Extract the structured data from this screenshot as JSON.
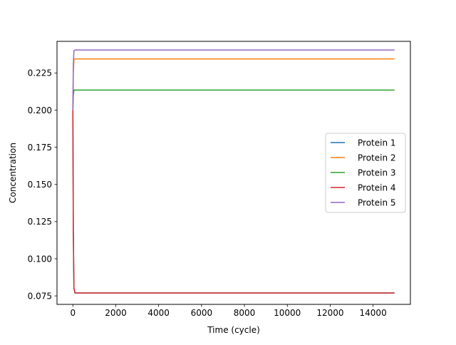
{
  "chart_data": {
    "type": "line",
    "title": "",
    "xlabel": "Time (cycle)",
    "ylabel": "Concentration",
    "xlim": [
      -740,
      15740
    ],
    "ylim": [
      0.0693,
      0.2463
    ],
    "x_ticks": [
      0,
      2000,
      4000,
      6000,
      8000,
      10000,
      12000,
      14000
    ],
    "x_tick_labels": [
      "0",
      "2000",
      "4000",
      "6000",
      "8000",
      "10000",
      "12000",
      "14000"
    ],
    "y_ticks": [
      0.075,
      0.1,
      0.125,
      0.15,
      0.175,
      0.2,
      0.225
    ],
    "y_tick_labels": [
      "0.075",
      "0.100",
      "0.125",
      "0.150",
      "0.175",
      "0.200",
      "0.225"
    ],
    "grid": false,
    "legend": {
      "position": "center-right"
    },
    "series": [
      {
        "name": "Protein 1",
        "color": "#1f77b4",
        "x": [
          0,
          20,
          50,
          100,
          15000
        ],
        "y": [
          0.2,
          0.12,
          0.08,
          0.077,
          0.077
        ]
      },
      {
        "name": "Protein 2",
        "color": "#ff7f0e",
        "x": [
          0,
          20,
          50,
          100,
          15000
        ],
        "y": [
          0.2,
          0.225,
          0.234,
          0.2345,
          0.2345
        ]
      },
      {
        "name": "Protein 3",
        "color": "#2ca02c",
        "x": [
          0,
          20,
          50,
          100,
          15000
        ],
        "y": [
          0.2,
          0.21,
          0.2135,
          0.2135,
          0.2135
        ]
      },
      {
        "name": "Protein 4",
        "color": "#d62728",
        "x": [
          0,
          20,
          50,
          100,
          15000
        ],
        "y": [
          0.2,
          0.12,
          0.08,
          0.077,
          0.077
        ]
      },
      {
        "name": "Protein 5",
        "color": "#9467bd",
        "x": [
          0,
          20,
          50,
          100,
          15000
        ],
        "y": [
          0.2,
          0.23,
          0.24,
          0.2405,
          0.2405
        ]
      }
    ]
  }
}
